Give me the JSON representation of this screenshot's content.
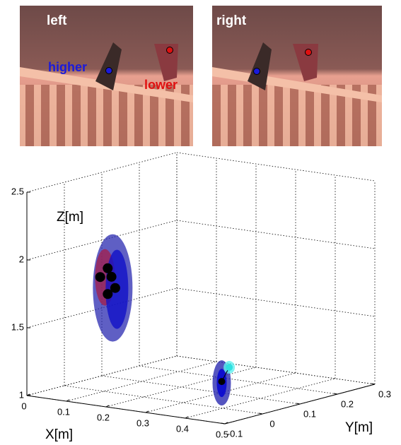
{
  "panels": [
    {
      "label": "left",
      "annotations": [
        {
          "text": "higher",
          "color": "#1a1adc"
        },
        {
          "text": "lower",
          "color": "#e01010"
        }
      ]
    },
    {
      "label": "right"
    }
  ],
  "chart_data": {
    "type": "scatter3d",
    "xlabel": "X[m]",
    "ylabel": "Y[m]",
    "zlabel": "Z[m]",
    "xlim": [
      0,
      0.5
    ],
    "ylim": [
      -0.1,
      0.3
    ],
    "zlim": [
      1,
      2.5
    ],
    "xticks": [
      0,
      0.1,
      0.2,
      0.3,
      0.4,
      0.5
    ],
    "yticks": [
      -0.1,
      0,
      0.1,
      0.2,
      0.3
    ],
    "zticks": [
      1,
      1.5,
      2,
      2.5
    ],
    "grid": true,
    "series": [
      {
        "color": "#000000",
        "x": [
          0.1,
          0.1,
          0.1,
          0.1,
          0.1
        ],
        "y": [
          0.01,
          -0.01,
          0.02,
          0.03,
          0.01
        ],
        "z": [
          1.9,
          1.85,
          1.83,
          1.74,
          1.71
        ]
      },
      {
        "color": "#000000",
        "x": [
          0.35
        ],
        "y": [
          0.05
        ],
        "z": [
          1.14
        ]
      },
      {
        "color": "#30e0e0",
        "x": [
          0.35
        ],
        "y": [
          0.07
        ],
        "z": [
          1.23
        ]
      }
    ]
  }
}
